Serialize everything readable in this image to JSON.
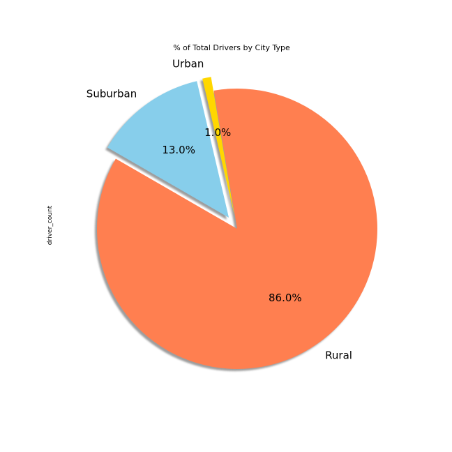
{
  "chart_data": {
    "type": "pie",
    "title": "% of Total Drivers by City Type",
    "ylabel": "driver_count",
    "categories": [
      "Rural",
      "Urban",
      "Suburban"
    ],
    "values": [
      86.0,
      1.0,
      13.0
    ],
    "percent_labels": [
      "86.0%",
      "1.0%",
      "13.0%"
    ],
    "colors": [
      "#FF7F50",
      "#FFD700",
      "#87CEEB"
    ],
    "exploded": [
      false,
      true,
      true
    ],
    "shadow": true,
    "start_angle_deg": 150,
    "direction": "counterclockwise"
  }
}
